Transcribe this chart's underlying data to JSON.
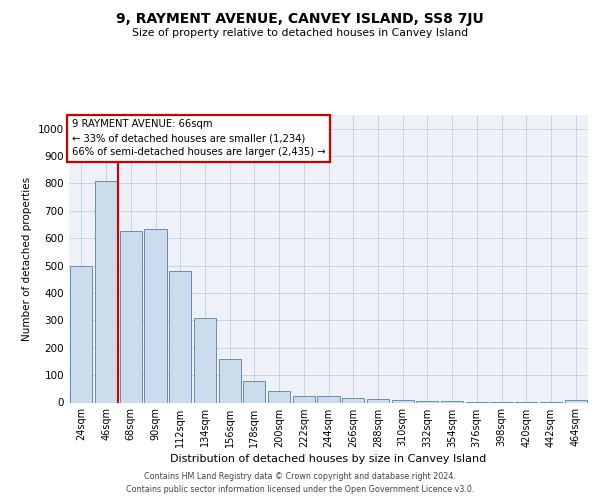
{
  "title": "9, RAYMENT AVENUE, CANVEY ISLAND, SS8 7JU",
  "subtitle": "Size of property relative to detached houses in Canvey Island",
  "xlabel": "Distribution of detached houses by size in Canvey Island",
  "ylabel": "Number of detached properties",
  "footer_line1": "Contains HM Land Registry data © Crown copyright and database right 2024.",
  "footer_line2": "Contains public sector information licensed under the Open Government Licence v3.0.",
  "categories": [
    "24sqm",
    "46sqm",
    "68sqm",
    "90sqm",
    "112sqm",
    "134sqm",
    "156sqm",
    "178sqm",
    "200sqm",
    "222sqm",
    "244sqm",
    "266sqm",
    "288sqm",
    "310sqm",
    "332sqm",
    "354sqm",
    "376sqm",
    "398sqm",
    "420sqm",
    "442sqm",
    "464sqm"
  ],
  "values": [
    500,
    810,
    625,
    635,
    480,
    310,
    160,
    80,
    43,
    22,
    22,
    15,
    12,
    10,
    7,
    5,
    2,
    2,
    2,
    1,
    10
  ],
  "bar_color": "#ccdcec",
  "bar_edge_color": "#5080b0",
  "vline_x": 1.5,
  "vline_color": "#cc0000",
  "annotation_title": "9 RAYMENT AVENUE: 66sqm",
  "annotation_line1": "← 33% of detached houses are smaller (1,234)",
  "annotation_line2": "66% of semi-detached houses are larger (2,435) →",
  "annotation_box_edgecolor": "#cc0000",
  "ylim": [
    0,
    1050
  ],
  "yticks": [
    0,
    100,
    200,
    300,
    400,
    500,
    600,
    700,
    800,
    900,
    1000
  ],
  "grid_color": "#b8c8d8",
  "background_color": "#eef2f8"
}
